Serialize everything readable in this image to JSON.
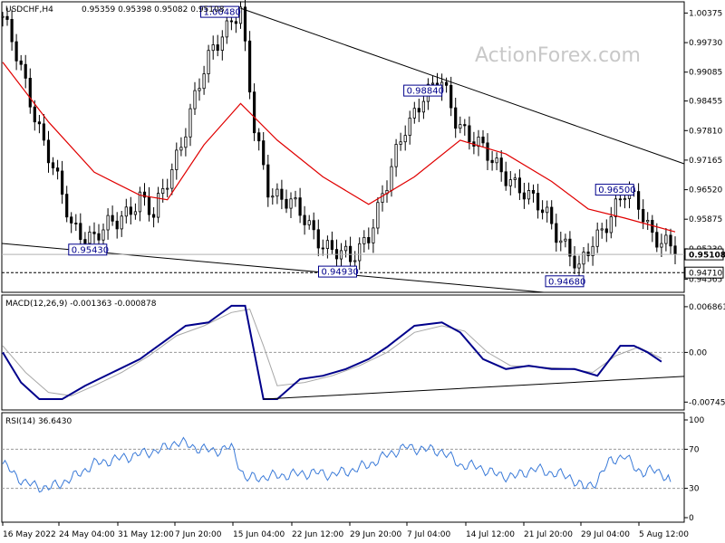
{
  "header": {
    "symbol": "USDCHF,H4",
    "quote": "0.95359 0.95398 0.95082 0.95108"
  },
  "watermark": "ActionForex.com",
  "colors": {
    "candle": "#000000",
    "ma": "#e00000",
    "macd": "#00008b",
    "signal": "#a8a8a8",
    "rsi": "#3a7ad8",
    "grid": "#999999",
    "label_border": "#00008b"
  },
  "chart_data": [
    {
      "type": "candlestick",
      "panel": "price",
      "ylim": [
        0.943,
        1.006
      ],
      "y_ticks": [
        "1.00375",
        "0.99730",
        "0.99085",
        "0.98455",
        "0.97810",
        "0.97165",
        "0.96520",
        "0.95875",
        "0.95230",
        "0.94565"
      ],
      "current_price": "0.95108",
      "support_level": "0.94710",
      "annotations": [
        "1.00480",
        "0.98840",
        "0.96500",
        "0.95430",
        "0.94930",
        "0.94680"
      ],
      "x_ticks": [
        "16 May 2022",
        "24 May 04:00",
        "31 May 12:00",
        "7 Jun 20:00",
        "15 Jun 04:00",
        "22 Jun 12:00",
        "29 Jun 20:00",
        "7 Jul 04:00",
        "14 Jul 12:00",
        "21 Jul 20:00",
        "29 Jul 04:00",
        "5 Aug 12:00"
      ],
      "path": [
        [
          0,
          1.003
        ],
        [
          5,
          0.988
        ],
        [
          10,
          0.973
        ],
        [
          15,
          0.957
        ],
        [
          20,
          0.955
        ],
        [
          25,
          0.958
        ],
        [
          30,
          0.964
        ],
        [
          33,
          0.959
        ],
        [
          37,
          0.97
        ],
        [
          42,
          0.985
        ],
        [
          46,
          0.996
        ],
        [
          50,
          1.003
        ],
        [
          52,
          1.004
        ],
        [
          55,
          0.978
        ],
        [
          58,
          0.966
        ],
        [
          63,
          0.962
        ],
        [
          68,
          0.956
        ],
        [
          72,
          0.952
        ],
        [
          76,
          0.9495
        ],
        [
          80,
          0.956
        ],
        [
          84,
          0.966
        ],
        [
          88,
          0.979
        ],
        [
          92,
          0.986
        ],
        [
          96,
          0.988
        ],
        [
          99,
          0.981
        ],
        [
          103,
          0.976
        ],
        [
          107,
          0.971
        ],
        [
          111,
          0.968
        ],
        [
          115,
          0.963
        ],
        [
          119,
          0.96
        ],
        [
          123,
          0.953
        ],
        [
          126,
          0.947
        ],
        [
          129,
          0.954
        ],
        [
          133,
          0.96
        ],
        [
          136,
          0.964
        ],
        [
          139,
          0.962
        ],
        [
          142,
          0.956
        ],
        [
          145,
          0.953
        ],
        [
          147,
          0.9511
        ]
      ],
      "ma": [
        [
          0,
          0.993
        ],
        [
          10,
          0.98
        ],
        [
          20,
          0.969
        ],
        [
          30,
          0.964
        ],
        [
          36,
          0.963
        ],
        [
          44,
          0.975
        ],
        [
          52,
          0.984
        ],
        [
          60,
          0.976
        ],
        [
          70,
          0.968
        ],
        [
          80,
          0.962
        ],
        [
          90,
          0.968
        ],
        [
          100,
          0.976
        ],
        [
          110,
          0.973
        ],
        [
          120,
          0.967
        ],
        [
          128,
          0.961
        ],
        [
          136,
          0.959
        ],
        [
          147,
          0.956
        ]
      ]
    },
    {
      "type": "line",
      "panel": "macd",
      "title": "MACD(12,26,9) -0.001363 -0.000878",
      "ylim": [
        -0.0085,
        0.0078
      ],
      "y_ticks": [
        "0.006861",
        "0.00",
        "-0.007454"
      ],
      "series": [
        {
          "role": "macd",
          "values": [
            [
              0,
              0.0
            ],
            [
              4,
              -0.0045
            ],
            [
              8,
              -0.007
            ],
            [
              13,
              -0.007
            ],
            [
              18,
              -0.005
            ],
            [
              24,
              -0.003
            ],
            [
              30,
              -0.001
            ],
            [
              35,
              0.0015
            ],
            [
              40,
              0.004
            ],
            [
              45,
              0.0045
            ],
            [
              50,
              0.007
            ],
            [
              53,
              0.007
            ],
            [
              55,
              0.0
            ],
            [
              57,
              -0.007
            ],
            [
              60,
              -0.007
            ],
            [
              65,
              -0.004
            ],
            [
              70,
              -0.0035
            ],
            [
              75,
              -0.0025
            ],
            [
              80,
              -0.001
            ],
            [
              84,
              0.0008
            ],
            [
              90,
              0.004
            ],
            [
              96,
              0.0045
            ],
            [
              100,
              0.003
            ],
            [
              105,
              -0.001
            ],
            [
              110,
              -0.0025
            ],
            [
              115,
              -0.002
            ],
            [
              120,
              -0.0025
            ],
            [
              125,
              -0.0025
            ],
            [
              130,
              -0.0035
            ],
            [
              135,
              0.001
            ],
            [
              138,
              0.001
            ],
            [
              141,
              0.0
            ],
            [
              144,
              -0.0014
            ]
          ]
        },
        {
          "role": "signal",
          "values": [
            [
              0,
              0.001
            ],
            [
              5,
              -0.003
            ],
            [
              10,
              -0.006
            ],
            [
              15,
              -0.0065
            ],
            [
              20,
              -0.005
            ],
            [
              26,
              -0.003
            ],
            [
              32,
              -0.0005
            ],
            [
              38,
              0.0025
            ],
            [
              44,
              0.004
            ],
            [
              50,
              0.006
            ],
            [
              54,
              0.0065
            ],
            [
              57,
              0.001
            ],
            [
              60,
              -0.005
            ],
            [
              66,
              -0.0045
            ],
            [
              72,
              -0.0035
            ],
            [
              78,
              -0.002
            ],
            [
              84,
              0.0
            ],
            [
              90,
              0.003
            ],
            [
              96,
              0.004
            ],
            [
              101,
              0.0032
            ],
            [
              106,
              0.0
            ],
            [
              111,
              -0.002
            ],
            [
              117,
              -0.0022
            ],
            [
              123,
              -0.0024
            ],
            [
              129,
              -0.003
            ],
            [
              134,
              -0.0005
            ],
            [
              139,
              0.0008
            ],
            [
              144,
              -0.0009
            ]
          ]
        }
      ]
    },
    {
      "type": "line",
      "panel": "rsi",
      "title": "RSI(14) 36.6430",
      "ylim": [
        0,
        100
      ],
      "y_ticks": [
        "100",
        "70",
        "30",
        "0"
      ],
      "series": [
        {
          "role": "rsi",
          "values": [
            [
              0,
              55
            ],
            [
              5,
              35
            ],
            [
              10,
              30
            ],
            [
              15,
              40
            ],
            [
              20,
              55
            ],
            [
              25,
              60
            ],
            [
              30,
              65
            ],
            [
              35,
              70
            ],
            [
              38,
              78
            ],
            [
              42,
              72
            ],
            [
              46,
              68
            ],
            [
              50,
              72
            ],
            [
              53,
              40
            ],
            [
              58,
              42
            ],
            [
              63,
              44
            ],
            [
              68,
              46
            ],
            [
              72,
              44
            ],
            [
              76,
              48
            ],
            [
              80,
              54
            ],
            [
              84,
              64
            ],
            [
              88,
              72
            ],
            [
              92,
              70
            ],
            [
              96,
              68
            ],
            [
              100,
              54
            ],
            [
              104,
              52
            ],
            [
              108,
              44
            ],
            [
              112,
              42
            ],
            [
              116,
              50
            ],
            [
              120,
              46
            ],
            [
              124,
              42
            ],
            [
              127,
              30
            ],
            [
              130,
              38
            ],
            [
              133,
              60
            ],
            [
              136,
              62
            ],
            [
              140,
              45
            ],
            [
              143,
              50
            ],
            [
              146,
              36.6
            ]
          ]
        }
      ]
    }
  ]
}
